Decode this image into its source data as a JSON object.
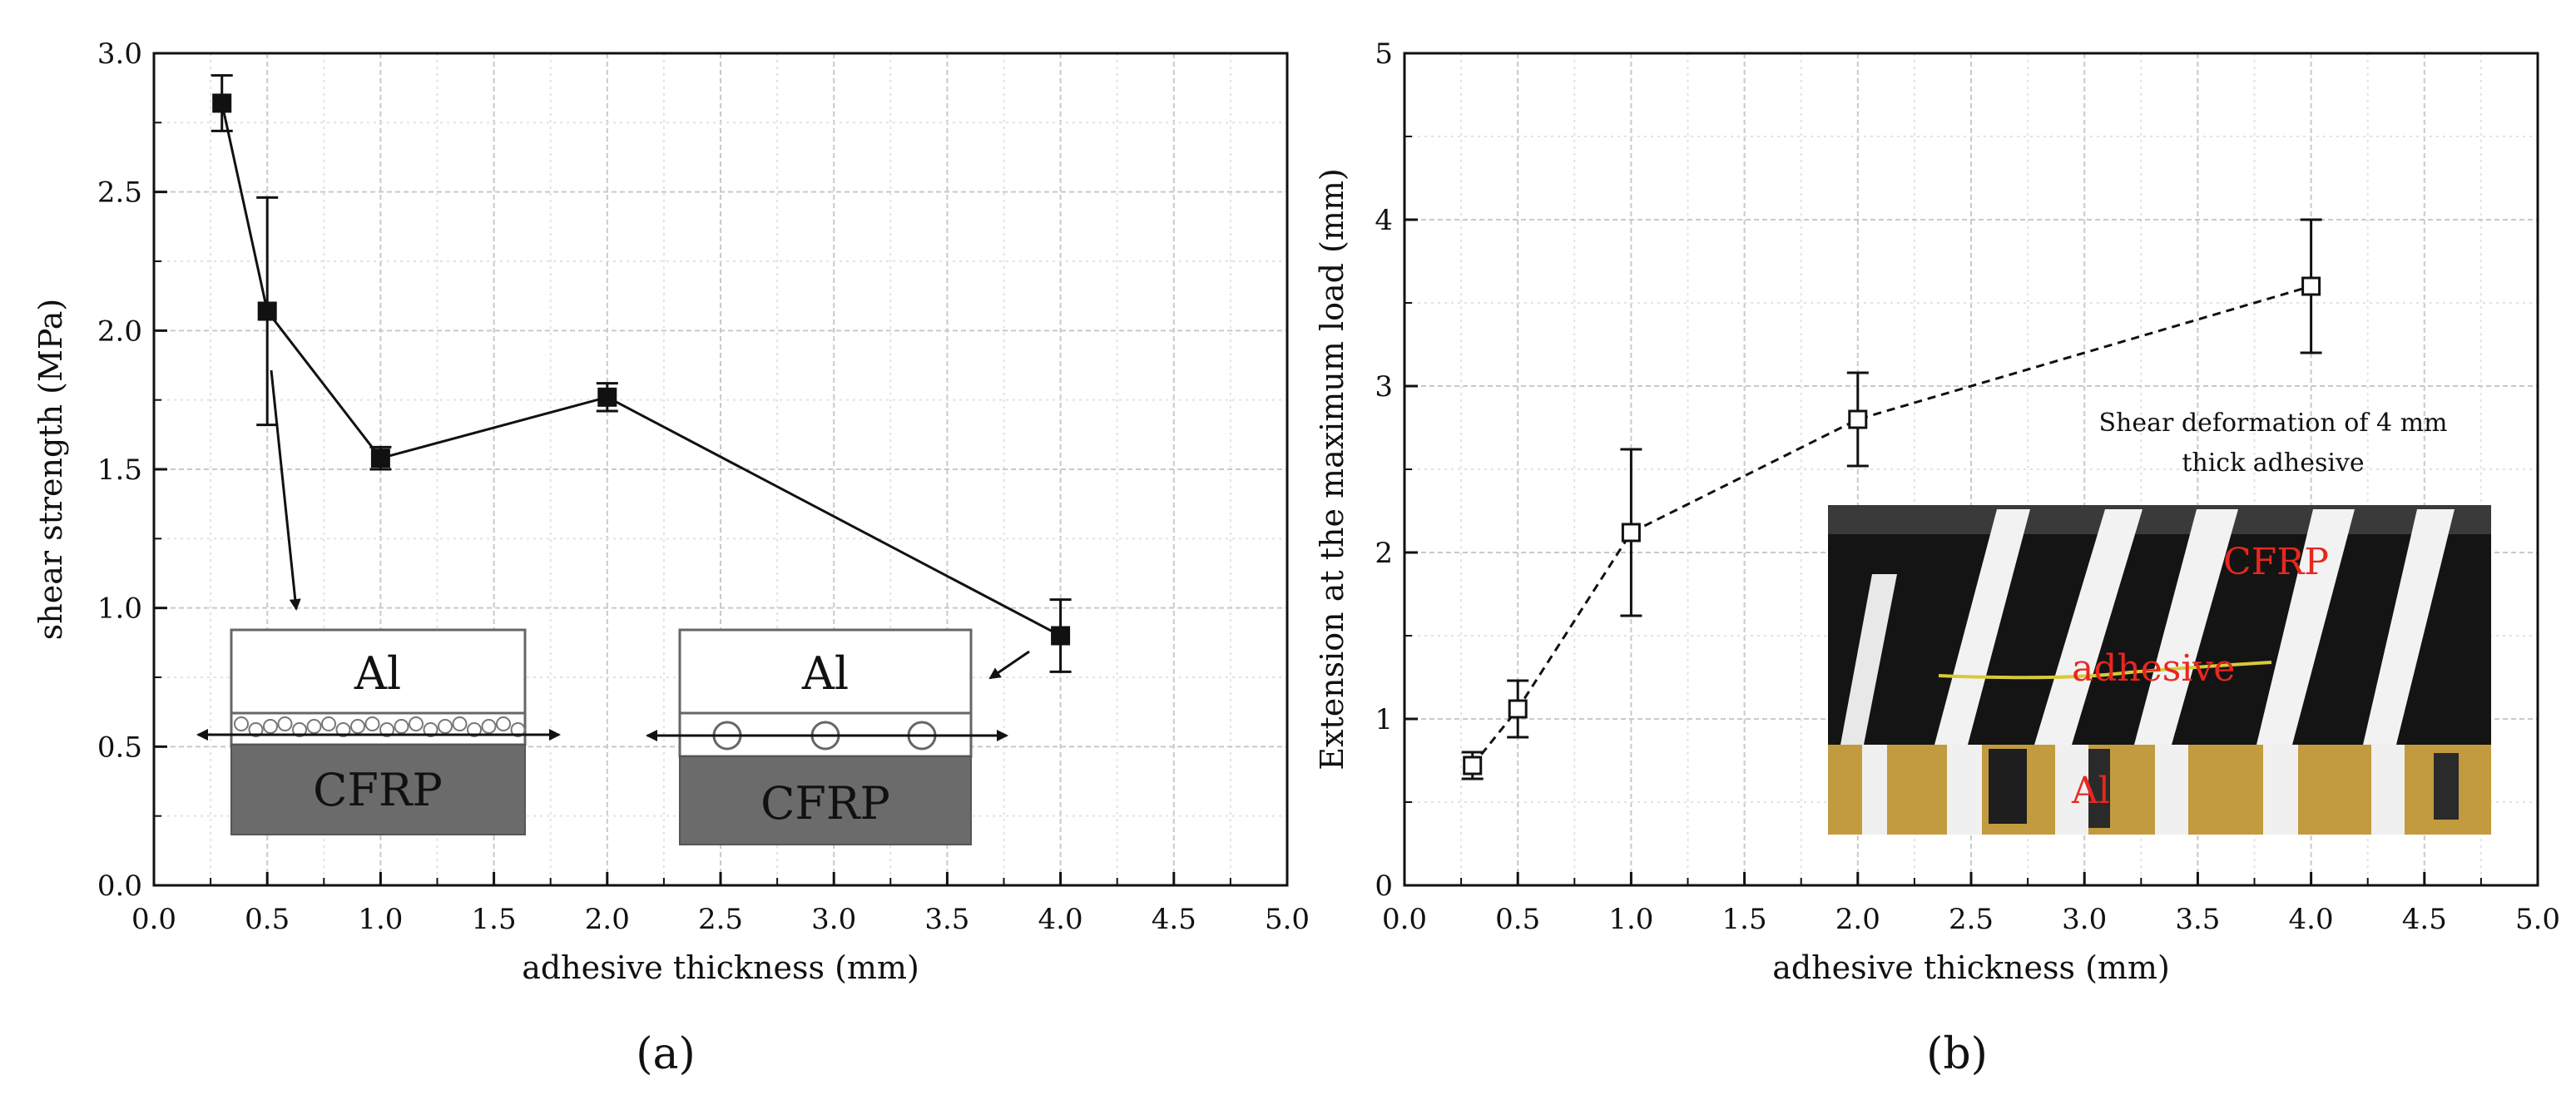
{
  "chart_data": [
    {
      "type": "line",
      "panel_label": "(a)",
      "xlabel": "adhesive thickness (mm)",
      "ylabel": "shear strength (MPa)",
      "xlim": [
        0.0,
        5.0
      ],
      "ylim": [
        0.0,
        3.0
      ],
      "x_ticks": [
        "0.0",
        "0.5",
        "1.0",
        "1.5",
        "2.0",
        "2.5",
        "3.0",
        "3.5",
        "4.0",
        "4.5",
        "5.0"
      ],
      "y_ticks": [
        "0.0",
        "0.5",
        "1.0",
        "1.5",
        "2.0",
        "2.5",
        "3.0"
      ],
      "grid": true,
      "series": [
        {
          "marker": "filled-square",
          "line": "solid",
          "x": [
            0.3,
            0.5,
            1.0,
            2.0,
            4.0
          ],
          "y": [
            2.82,
            2.07,
            1.54,
            1.76,
            0.9
          ],
          "err": [
            0.1,
            0.41,
            0.04,
            0.05,
            0.13
          ]
        }
      ],
      "insets": {
        "left": {
          "top_label": "Al",
          "bottom_label": "CFRP"
        },
        "right": {
          "top_label": "Al",
          "bottom_label": "CFRP"
        }
      }
    },
    {
      "type": "line",
      "panel_label": "(b)",
      "xlabel": "adhesive thickness (mm)",
      "ylabel": "Extension at the maximum load (mm)",
      "xlim": [
        0.0,
        5.0
      ],
      "ylim": [
        0,
        5
      ],
      "x_ticks": [
        "0.0",
        "0.5",
        "1.0",
        "1.5",
        "2.0",
        "2.5",
        "3.0",
        "3.5",
        "4.0",
        "4.5",
        "5.0"
      ],
      "y_ticks": [
        "0",
        "1",
        "2",
        "3",
        "4",
        "5"
      ],
      "grid": true,
      "series": [
        {
          "marker": "open-square",
          "line": "dashed",
          "x": [
            0.3,
            0.5,
            1.0,
            2.0,
            4.0
          ],
          "y": [
            0.72,
            1.06,
            2.12,
            2.8,
            3.6
          ],
          "err": [
            0.08,
            0.17,
            0.5,
            0.28,
            0.4
          ]
        }
      ],
      "photo": {
        "caption_line1": "Shear deformation of 4 mm",
        "caption_line2": "thick adhesive",
        "label_cfrp": "CFRP",
        "label_adhesive": "adhesive",
        "label_al": "Al"
      }
    }
  ]
}
